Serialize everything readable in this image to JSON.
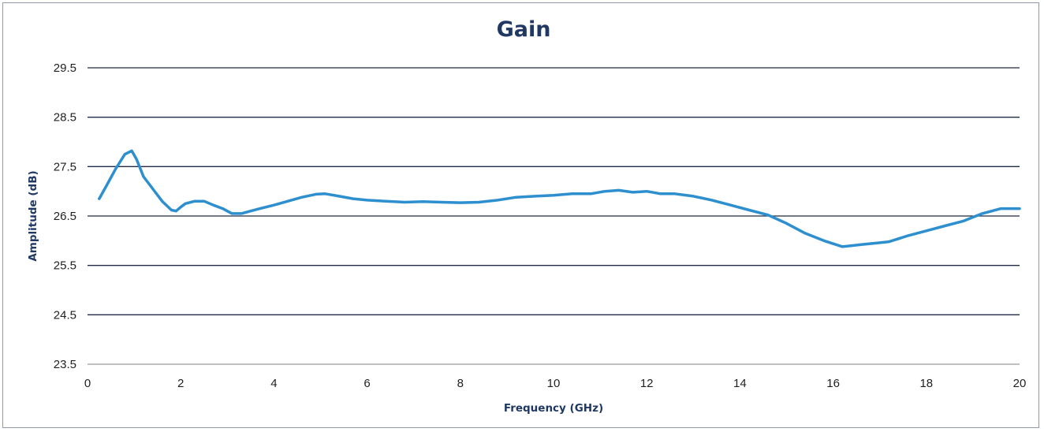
{
  "chart_data": {
    "type": "line",
    "title": "Gain",
    "xlabel": "Frequency (GHz)",
    "ylabel": "Amplitude (dB)",
    "xlim": [
      0,
      20
    ],
    "ylim": [
      23.5,
      29.5
    ],
    "x_ticks": [
      "0",
      "2",
      "4",
      "6",
      "8",
      "10",
      "12",
      "14",
      "16",
      "18",
      "20"
    ],
    "y_ticks": [
      "29.5",
      "28.5",
      "27.5",
      "26.5",
      "25.5",
      "24.5",
      "23.5"
    ],
    "grid": "horizontal",
    "legend": "none",
    "series": [
      {
        "color": "#2e8fcf",
        "x": [
          0.25,
          0.4,
          0.6,
          0.8,
          0.95,
          1.05,
          1.2,
          1.4,
          1.6,
          1.8,
          1.9,
          2.0,
          2.1,
          2.3,
          2.5,
          2.7,
          2.9,
          3.1,
          3.3,
          3.5,
          3.7,
          4.0,
          4.3,
          4.6,
          4.9,
          5.1,
          5.4,
          5.7,
          6.0,
          6.4,
          6.8,
          7.2,
          7.6,
          8.0,
          8.4,
          8.8,
          9.2,
          9.6,
          10.0,
          10.4,
          10.8,
          11.1,
          11.4,
          11.7,
          12.0,
          12.3,
          12.6,
          13.0,
          13.4,
          13.8,
          14.2,
          14.6,
          15.0,
          15.4,
          15.8,
          16.2,
          16.4,
          16.6,
          16.9,
          17.2,
          17.6,
          18.0,
          18.4,
          18.8,
          19.2,
          19.6,
          20.0
        ],
        "y": [
          26.85,
          27.1,
          27.45,
          27.75,
          27.82,
          27.65,
          27.3,
          27.05,
          26.8,
          26.62,
          26.6,
          26.68,
          26.75,
          26.8,
          26.8,
          26.72,
          26.65,
          26.55,
          26.55,
          26.6,
          26.65,
          26.72,
          26.8,
          26.88,
          26.94,
          26.95,
          26.9,
          26.85,
          26.82,
          26.8,
          26.78,
          26.79,
          26.78,
          26.77,
          26.78,
          26.82,
          26.88,
          26.9,
          26.92,
          26.95,
          26.95,
          27.0,
          27.02,
          26.98,
          27.0,
          26.95,
          26.95,
          26.9,
          26.82,
          26.72,
          26.62,
          26.52,
          26.35,
          26.15,
          26.0,
          25.88,
          25.9,
          25.92,
          25.95,
          25.98,
          26.1,
          26.2,
          26.3,
          26.4,
          26.55,
          26.65,
          26.65
        ]
      }
    ]
  }
}
